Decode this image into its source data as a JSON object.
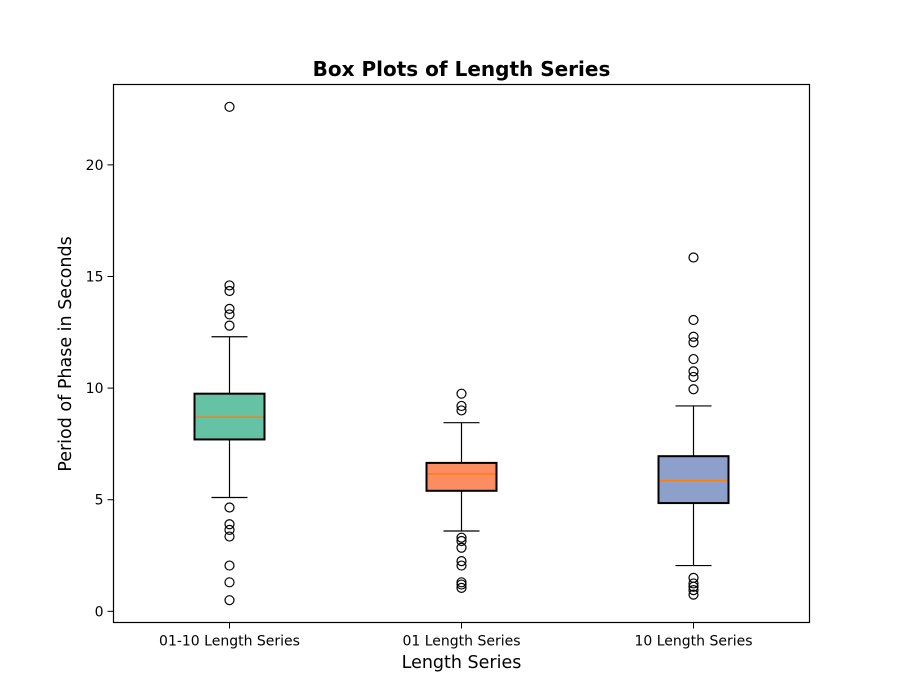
{
  "chart_data": {
    "type": "box",
    "title": "Box Plots of Length Series",
    "xlabel": "Length Series",
    "ylabel": "Period of Phase in Seconds",
    "ylim": [
      -0.5,
      23.6
    ],
    "yticks": [
      0,
      5,
      10,
      15,
      20
    ],
    "grid": false,
    "legend": "none",
    "median_color": "#ff7f0e",
    "boxes": [
      {
        "label": "01-10 Length Series",
        "color": "#66c2a5",
        "whisker_low": 5.1,
        "q1": 7.7,
        "median": 8.7,
        "q3": 9.75,
        "whisker_high": 12.3,
        "outliers": [
          22.6,
          14.6,
          14.35,
          13.55,
          13.3,
          12.8,
          4.65,
          3.9,
          3.65,
          3.35,
          2.05,
          1.3,
          0.5
        ]
      },
      {
        "label": "01 Length Series",
        "color": "#fc8d62",
        "whisker_low": 3.6,
        "q1": 5.4,
        "median": 6.15,
        "q3": 6.65,
        "whisker_high": 8.45,
        "outliers": [
          9.75,
          9.2,
          9.0,
          3.3,
          3.15,
          2.85,
          2.25,
          2.05,
          1.3,
          1.2,
          1.05
        ]
      },
      {
        "label": "10 Length Series",
        "color": "#8da0cb",
        "whisker_low": 2.05,
        "q1": 4.85,
        "median": 5.85,
        "q3": 6.95,
        "whisker_high": 9.2,
        "outliers": [
          15.85,
          13.05,
          12.3,
          12.05,
          11.3,
          10.75,
          10.5,
          9.95,
          1.5,
          1.25,
          1.1,
          0.95,
          0.75
        ]
      }
    ]
  }
}
